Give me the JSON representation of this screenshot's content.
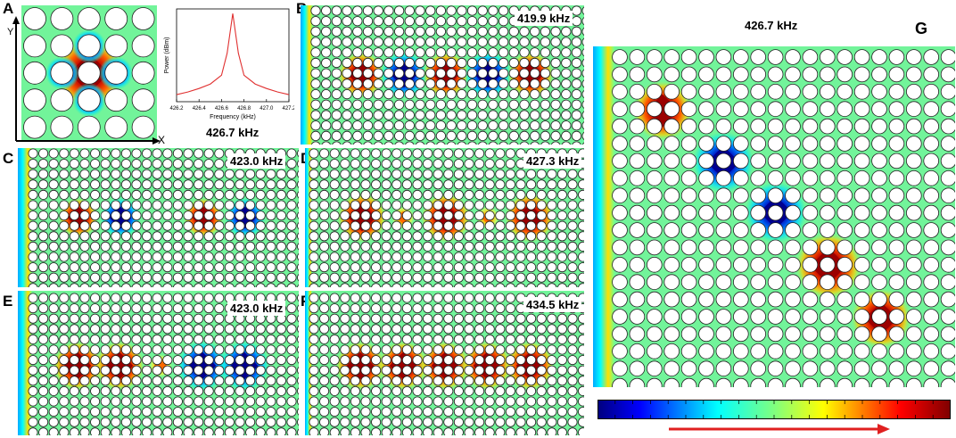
{
  "panels": {
    "A": {
      "label": "A",
      "axis_x": "X",
      "axis_y": "Y"
    },
    "B": {
      "label": "B",
      "freq": "419.9 kHz"
    },
    "C": {
      "label": "C",
      "freq": "423.0 kHz"
    },
    "D": {
      "label": "D",
      "freq": "427.3 kHz"
    },
    "E": {
      "label": "E",
      "freq": "423.0 kHz"
    },
    "F": {
      "label": "F",
      "freq": "434.5 kHz"
    },
    "G": {
      "label": "G",
      "freq": "426.7 kHz"
    }
  },
  "chart_data": {
    "type": "line",
    "xlabel": "Frequency (kHz)",
    "ylabel": "Power (dBm)",
    "xlim": [
      426.2,
      427.2
    ],
    "x_ticks": [
      "426.2",
      "426.4",
      "426.6",
      "426.8",
      "427.0",
      "427.2"
    ],
    "caption": "426.7 kHz",
    "series": [
      {
        "x": [
          426.2,
          426.3,
          426.4,
          426.5,
          426.6,
          426.65,
          426.7,
          426.75,
          426.8,
          426.9,
          427.0,
          427.1,
          427.2
        ],
        "y": [
          0.08,
          0.11,
          0.15,
          0.2,
          0.3,
          0.55,
          1.0,
          0.55,
          0.3,
          0.2,
          0.15,
          0.11,
          0.08
        ]
      }
    ]
  },
  "colors": {
    "arrow": "#e02020"
  }
}
